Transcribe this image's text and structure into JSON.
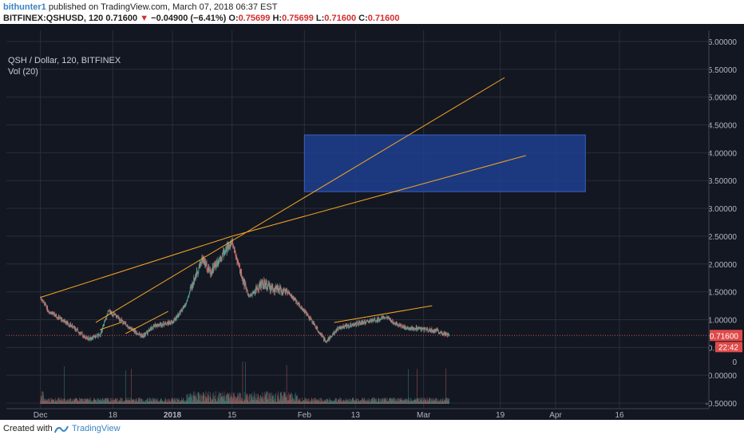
{
  "header": {
    "author": "bithunter1",
    "published_text": "published on TradingView.com, March 07, 2018 06:37 EST",
    "symbol": "BITFINEX:QSHUSD, 120",
    "last": "0.71600",
    "change_arrow": "▼",
    "change": "−0.04900 (−6.41%)",
    "ohlc": {
      "o_label": "O:",
      "o": "0.75699",
      "h_label": "H:",
      "h": "0.75699",
      "l_label": "L:",
      "l": "0.71600",
      "c_label": "C:",
      "c": "0.71600"
    }
  },
  "legend": {
    "title": "QSH / Dollar, 120, BITFINEX",
    "volume": "Vol (20)"
  },
  "footer": {
    "created_with": "Created with",
    "brand": "TradingView"
  },
  "colors": {
    "background": "#131722",
    "grid": "#2a2e39",
    "up": "#3fa898",
    "down": "#e06a6a",
    "trendline": "#f5a623",
    "zone": "#1e3f8f",
    "price_line": "#d05050",
    "price_label_bg": "#e04a4a"
  },
  "chart_data": {
    "type": "candlestick",
    "title": "QSH / Dollar, 120, BITFINEX",
    "xlabel": "",
    "ylabel": "",
    "x_tick_labels": [
      "Dec",
      "18",
      "2018",
      "15",
      "Feb",
      "13",
      "Mar",
      "19",
      "Apr",
      "16"
    ],
    "y_tick_labels": [
      "6.00000",
      "5.50000",
      "5.00000",
      "4.50000",
      "4.00000",
      "3.50000",
      "3.00000",
      "2.50000",
      "2.00000",
      "1.50000",
      "1.00000",
      "0.50000",
      "0",
      "0.00000",
      "-0.50000"
    ],
    "ylim": [
      -0.6,
      6.2
    ],
    "price_anchors": [
      [
        "2017-12-01",
        1.4
      ],
      [
        "2017-12-03",
        1.15
      ],
      [
        "2017-12-06",
        1.0
      ],
      [
        "2017-12-09",
        0.85
      ],
      [
        "2017-12-12",
        0.65
      ],
      [
        "2017-12-15",
        0.72
      ],
      [
        "2017-12-17",
        1.15
      ],
      [
        "2017-12-19",
        1.05
      ],
      [
        "2017-12-22",
        0.85
      ],
      [
        "2017-12-25",
        0.7
      ],
      [
        "2017-12-28",
        0.9
      ],
      [
        "2018-01-01",
        0.95
      ],
      [
        "2018-01-04",
        1.25
      ],
      [
        "2018-01-06",
        1.7
      ],
      [
        "2018-01-08",
        2.1
      ],
      [
        "2018-01-10",
        1.85
      ],
      [
        "2018-01-12",
        2.1
      ],
      [
        "2018-01-15",
        2.4
      ],
      [
        "2018-01-17",
        1.85
      ],
      [
        "2018-01-19",
        1.4
      ],
      [
        "2018-01-22",
        1.65
      ],
      [
        "2018-01-25",
        1.55
      ],
      [
        "2018-01-28",
        1.5
      ],
      [
        "2018-01-31",
        1.25
      ],
      [
        "2018-02-03",
        0.95
      ],
      [
        "2018-02-06",
        0.6
      ],
      [
        "2018-02-09",
        0.85
      ],
      [
        "2018-02-12",
        0.9
      ],
      [
        "2018-02-15",
        0.95
      ],
      [
        "2018-02-18",
        1.0
      ],
      [
        "2018-02-20",
        1.05
      ],
      [
        "2018-02-22",
        0.95
      ],
      [
        "2018-02-25",
        0.85
      ],
      [
        "2018-03-01",
        0.83
      ],
      [
        "2018-03-04",
        0.8
      ],
      [
        "2018-03-07",
        0.72
      ]
    ],
    "last_price": 0.716,
    "price_label": "0.71600",
    "countdown_label": "22:42",
    "trendlines": [
      {
        "x1": "2017-12-01",
        "y1": 1.4,
        "x2": "2018-01-15",
        "y2": 2.5
      },
      {
        "x1": "2017-12-14",
        "y1": 0.95,
        "x2": "2018-03-20",
        "y2": 5.35
      },
      {
        "x1": "2018-01-15",
        "y1": 2.5,
        "x2": "2018-03-25",
        "y2": 3.95
      },
      {
        "x1": "2018-02-08",
        "y1": 0.95,
        "x2": "2018-03-03",
        "y2": 1.25
      },
      {
        "x1": "2017-12-21",
        "y1": 0.75,
        "x2": "2017-12-31",
        "y2": 1.15
      },
      {
        "x1": "2017-12-15",
        "y1": 0.82,
        "x2": "2017-12-20",
        "y2": 0.95
      }
    ],
    "zone": {
      "x1": "2018-02-01",
      "x2": "2018-04-08",
      "y_low": 3.3,
      "y_high": 4.32
    }
  }
}
